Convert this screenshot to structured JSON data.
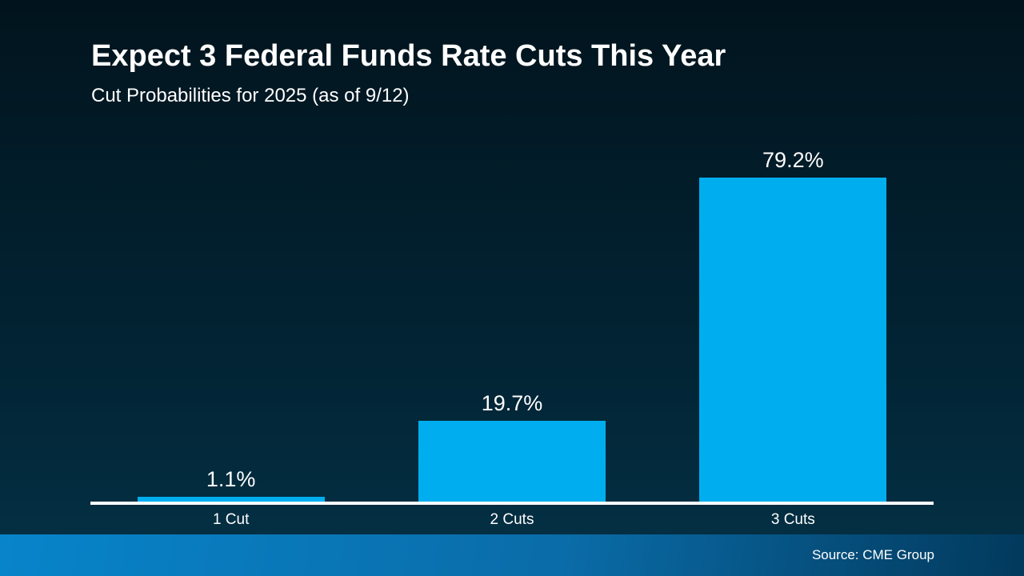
{
  "header": {
    "title": "Expect 3 Federal Funds Rate Cuts This Year",
    "subtitle": "Cut Probabilities for 2025 (as of 9/12)"
  },
  "chart_data": {
    "type": "bar",
    "title": "Expect 3 Federal Funds Rate Cuts This Year",
    "subtitle": "Cut Probabilities for 2025 (as of 9/12)",
    "categories": [
      "1 Cut",
      "2 Cuts",
      "3 Cuts"
    ],
    "values": [
      1.1,
      19.7,
      79.2
    ],
    "value_labels": [
      "1.1%",
      "19.7%",
      "79.2%"
    ],
    "xlabel": "",
    "ylabel": "",
    "ylim": [
      0,
      100
    ],
    "grid": false,
    "legend_position": "none",
    "bar_color": "#00AEEF",
    "axis_color": "#FFFFFF",
    "label_color": "#FFFFFF"
  },
  "footer": {
    "source": "Source: CME Group"
  },
  "colors": {
    "bar": "#00AEEF",
    "axis": "#FFFFFF",
    "text": "#FFFFFF",
    "background_top": "#01141D",
    "background_bottom": "#043146",
    "footer_gradient_left": "#0884CA",
    "footer_gradient_mid": "#0A6CA8",
    "footer_gradient_right": "#02395C"
  }
}
